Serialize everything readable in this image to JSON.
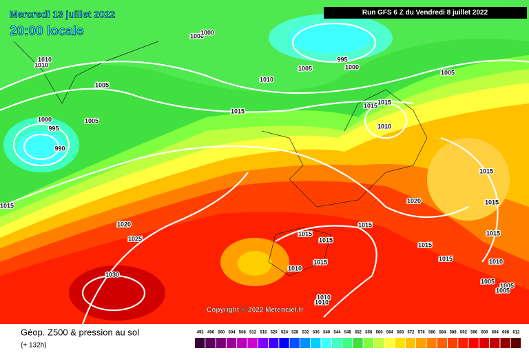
{
  "header": {
    "date": "Mercredi 13 juillet 2022",
    "time": "20:00 locale",
    "run": "Run GFS 6 Z du Vendredi 8 juillet 2022"
  },
  "isobar_labels": [
    "1010",
    "1010",
    "1000",
    "1000",
    "995",
    "1000",
    "1005",
    "1005",
    "1005",
    "1010",
    "1015",
    "1015",
    "1015",
    "1000",
    "1005",
    "995",
    "990",
    "1010",
    "1015",
    "1015",
    "1015",
    "1020",
    "1020",
    "1015",
    "1015",
    "1015",
    "1025",
    "1015",
    "1015",
    "1010",
    "1015",
    "1015",
    "1010",
    "1030",
    "1005",
    "1005",
    "1005",
    "1010",
    "1010"
  ],
  "copyright": "Copyright © 2022 Meteociel.fr",
  "footer": {
    "title": "Géop. Z500 & pression au sol",
    "lead": "(+ 132h)"
  },
  "legend": {
    "levels": [
      "492",
      "496",
      "500",
      "504",
      "508",
      "512",
      "516",
      "520",
      "524",
      "528",
      "532",
      "536",
      "540",
      "544",
      "548",
      "552",
      "556",
      "560",
      "564",
      "568",
      "572",
      "576",
      "580",
      "584",
      "588",
      "592",
      "596",
      "600",
      "604",
      "608",
      "612"
    ],
    "colors": [
      "#3a003a",
      "#5a005a",
      "#7a007a",
      "#9a009a",
      "#ba00ba",
      "#d000d0",
      "#8000ff",
      "#4000ff",
      "#0000ff",
      "#0050ff",
      "#0090ff",
      "#00d0ff",
      "#40ffff",
      "#40ffc0",
      "#40ff80",
      "#40e040",
      "#80ff40",
      "#c0ff40",
      "#ffff40",
      "#ffe000",
      "#ffc000",
      "#ffa000",
      "#ff8000",
      "#ff6000",
      "#ff4000",
      "#ff2000",
      "#ff0000",
      "#e00000",
      "#c00000",
      "#900000",
      "#600000"
    ]
  }
}
